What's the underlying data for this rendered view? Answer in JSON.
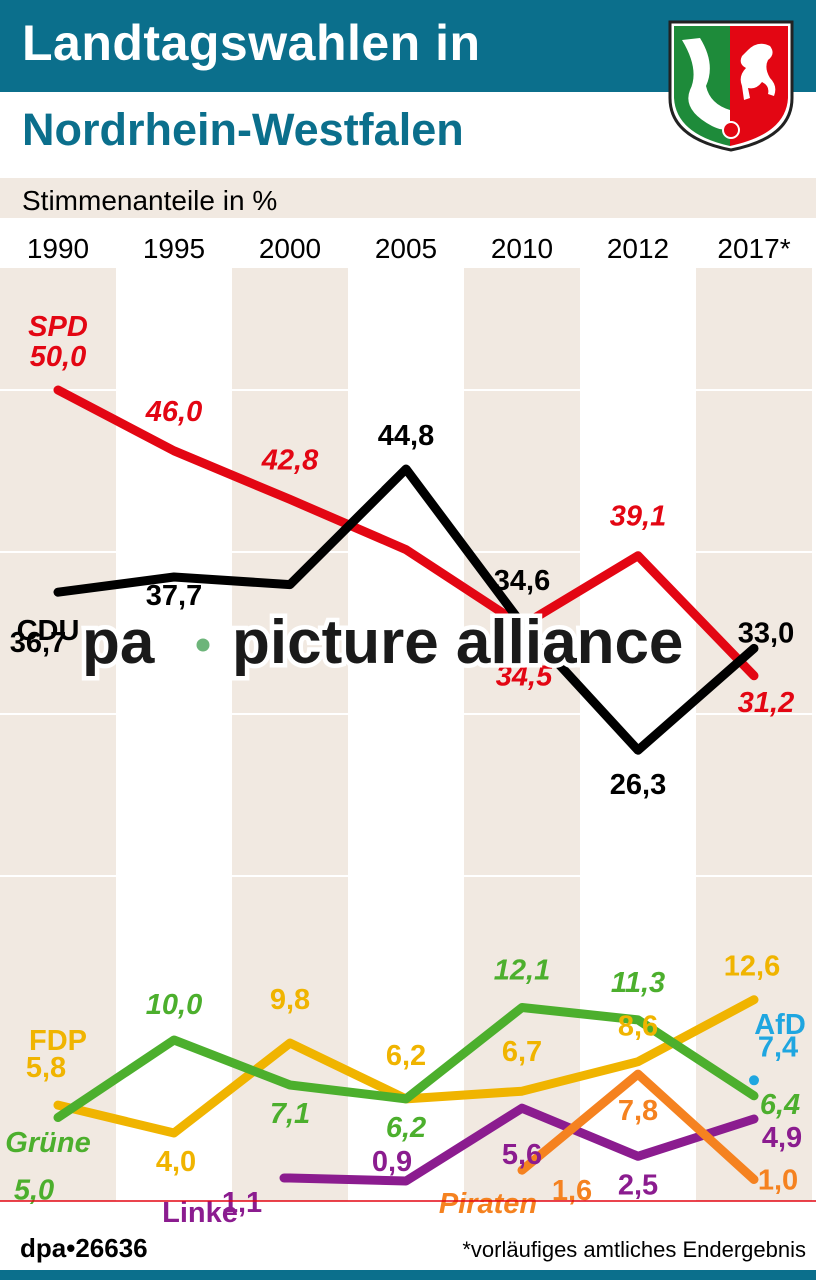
{
  "header": {
    "title": "Landtagswahlen in",
    "subtitle": "Nordrhein-Westfalen",
    "unit_label": "Stimmenanteile in %"
  },
  "footer": {
    "source": "dpa•26636",
    "note": "*vorläufiges amtliches Endergebnis"
  },
  "watermark": "pa picture alliance",
  "emblem": "nrw-coat-of-arms",
  "colors": {
    "brand": "#0b6f8c",
    "band": "#f1e9e1",
    "SPD": "#e30613",
    "CDU": "#000000",
    "FDP": "#f0b400",
    "Grüne": "#4caf2d",
    "Linke": "#8b1c8f",
    "Piraten": "#f58220",
    "AfD": "#1fa6e0",
    "baseline": "#e30613"
  },
  "chart_data": {
    "type": "line",
    "categories": [
      "1990",
      "1995",
      "2000",
      "2005",
      "2010",
      "2012",
      "2017*"
    ],
    "title": "Stimmenanteile in %",
    "xlabel": "",
    "ylabel": "",
    "grid": true,
    "series": [
      {
        "name": "SPD",
        "values": [
          50.0,
          46.0,
          42.8,
          null,
          34.5,
          39.1,
          31.2
        ],
        "labels": [
          "50,0",
          "46,0",
          "42,8",
          "",
          "34,5",
          "39,1",
          "31,2"
        ]
      },
      {
        "name": "CDU",
        "values": [
          36.7,
          37.7,
          null,
          44.8,
          34.6,
          26.3,
          33.0
        ],
        "labels": [
          "36,7",
          "37,7",
          "",
          "44,8",
          "34,6",
          "26,3",
          "33,0"
        ]
      },
      {
        "name": "FDP",
        "values": [
          5.8,
          4.0,
          9.8,
          6.2,
          6.7,
          8.6,
          12.6
        ],
        "labels": [
          "5,8",
          "4,0",
          "9,8",
          "6,2",
          "6,7",
          "8,6",
          "12,6"
        ]
      },
      {
        "name": "Grüne",
        "values": [
          5.0,
          10.0,
          7.1,
          6.2,
          12.1,
          11.3,
          6.4
        ],
        "labels": [
          "5,0",
          "10,0",
          "7,1",
          "6,2",
          "12,1",
          "11,3",
          "6,4"
        ]
      },
      {
        "name": "Linke",
        "values": [
          null,
          null,
          1.1,
          0.9,
          5.6,
          2.5,
          4.9
        ],
        "labels": [
          "",
          "",
          "1,1",
          "0,9",
          "5,6",
          "2,5",
          "4,9"
        ]
      },
      {
        "name": "Piraten",
        "values": [
          null,
          null,
          null,
          null,
          1.6,
          7.8,
          1.0
        ],
        "labels": [
          "",
          "",
          "",
          "",
          "1,6",
          "7,8",
          "1,0"
        ]
      },
      {
        "name": "AfD",
        "values": [
          null,
          null,
          null,
          null,
          null,
          null,
          7.4
        ],
        "labels": [
          "",
          "",
          "",
          "",
          "",
          "",
          "7,4"
        ]
      }
    ]
  }
}
